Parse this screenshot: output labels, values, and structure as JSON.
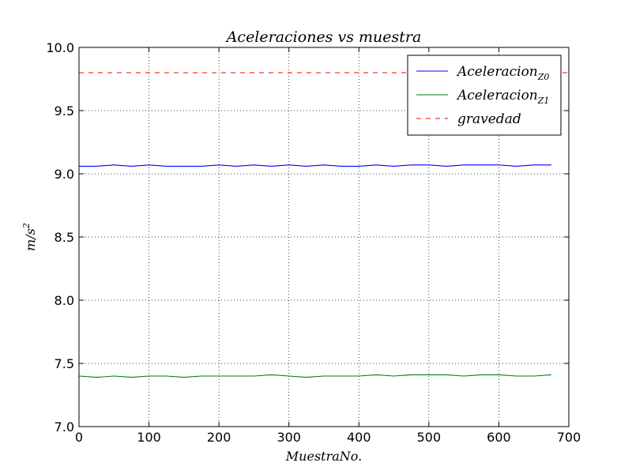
{
  "chart_data": {
    "type": "line",
    "title": "Aceleraciones vs muestra",
    "xlabel": "MuestraNo.",
    "ylabel_base": "m/s",
    "ylabel_exp": "2",
    "xlim": [
      0,
      700
    ],
    "ylim": [
      7.0,
      10.0
    ],
    "xticks": [
      0,
      100,
      200,
      300,
      400,
      500,
      600,
      700
    ],
    "xtick_labels": [
      "0",
      "100",
      "200",
      "300",
      "400",
      "500",
      "600",
      "700"
    ],
    "yticks": [
      7.0,
      7.5,
      8.0,
      8.5,
      9.0,
      9.5,
      10.0
    ],
    "ytick_labels": [
      "7.0",
      "7.5",
      "8.0",
      "8.5",
      "9.0",
      "9.5",
      "10.0"
    ],
    "grid": true,
    "legend_position": "top-right",
    "series": [
      {
        "label_base": "Aceleracion",
        "label_sub": "Z0",
        "color": "#0000ff",
        "style": "solid",
        "x": [
          0,
          25,
          50,
          75,
          100,
          125,
          150,
          175,
          200,
          225,
          250,
          275,
          300,
          325,
          350,
          375,
          400,
          425,
          450,
          475,
          500,
          525,
          550,
          575,
          600,
          625,
          650,
          675
        ],
        "y": [
          9.06,
          9.06,
          9.07,
          9.06,
          9.07,
          9.06,
          9.06,
          9.06,
          9.07,
          9.06,
          9.07,
          9.06,
          9.07,
          9.06,
          9.07,
          9.06,
          9.06,
          9.07,
          9.06,
          9.07,
          9.07,
          9.06,
          9.07,
          9.07,
          9.07,
          9.06,
          9.07,
          9.07
        ]
      },
      {
        "label_base": "Aceleracion",
        "label_sub": "Z1",
        "color": "#008000",
        "style": "solid",
        "x": [
          0,
          25,
          50,
          75,
          100,
          125,
          150,
          175,
          200,
          225,
          250,
          275,
          300,
          325,
          350,
          375,
          400,
          425,
          450,
          475,
          500,
          525,
          550,
          575,
          600,
          625,
          650,
          675
        ],
        "y": [
          7.4,
          7.39,
          7.4,
          7.39,
          7.4,
          7.4,
          7.39,
          7.4,
          7.4,
          7.4,
          7.4,
          7.41,
          7.4,
          7.39,
          7.4,
          7.4,
          7.4,
          7.41,
          7.4,
          7.41,
          7.41,
          7.41,
          7.4,
          7.41,
          7.41,
          7.4,
          7.4,
          7.41
        ]
      },
      {
        "label_base": "gravedad",
        "label_sub": "",
        "color": "#ff0000",
        "style": "dashed",
        "x": [
          0,
          700
        ],
        "y": [
          9.8,
          9.8
        ]
      }
    ]
  }
}
